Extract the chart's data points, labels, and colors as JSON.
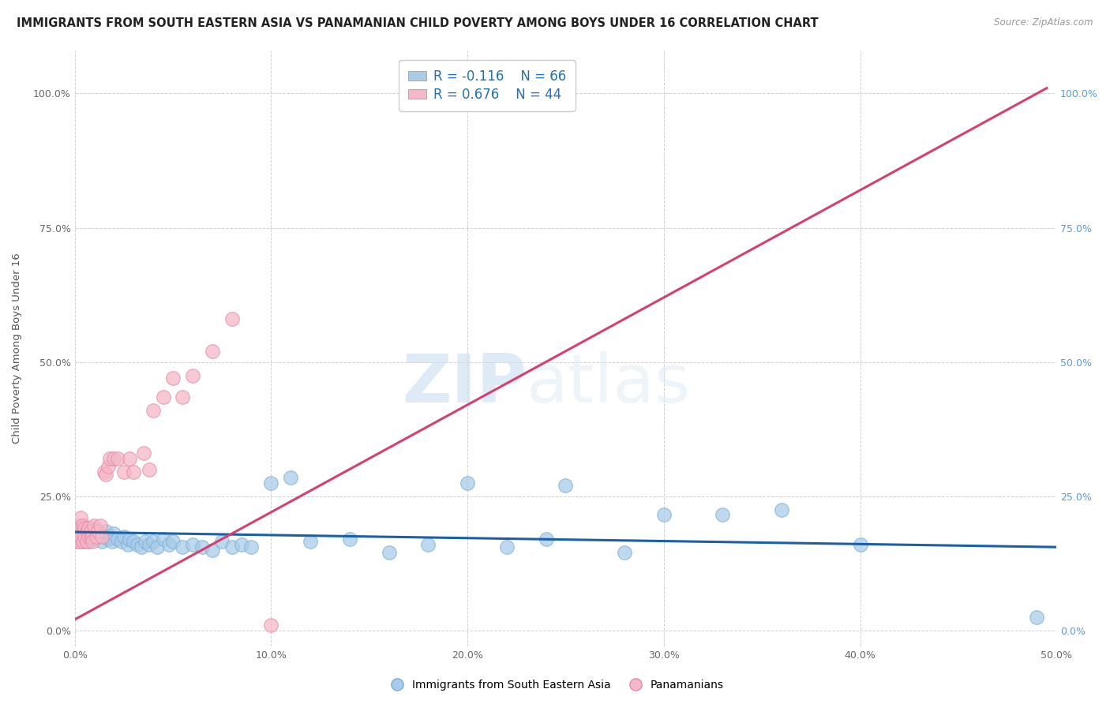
{
  "title": "IMMIGRANTS FROM SOUTH EASTERN ASIA VS PANAMANIAN CHILD POVERTY AMONG BOYS UNDER 16 CORRELATION CHART",
  "source": "Source: ZipAtlas.com",
  "ylabel": "Child Poverty Among Boys Under 16",
  "xlim": [
    0.0,
    0.5
  ],
  "ylim": [
    -0.03,
    1.08
  ],
  "xticks": [
    0.0,
    0.1,
    0.2,
    0.3,
    0.4,
    0.5
  ],
  "xticklabels": [
    "0.0%",
    "10.0%",
    "20.0%",
    "30.0%",
    "40.0%",
    "50.0%"
  ],
  "yticks_left": [
    0.0,
    0.25,
    0.5,
    0.75,
    1.0
  ],
  "yticklabels_left": [
    "0.0%",
    "25.0%",
    "50.0%",
    "75.0%",
    "100.0%"
  ],
  "yticks_right": [
    0.0,
    0.25,
    0.5,
    0.75,
    1.0
  ],
  "yticklabels_right": [
    "0.0%",
    "25.0%",
    "50.0%",
    "75.0%",
    "100.0%"
  ],
  "watermark_zip": "ZIP",
  "watermark_atlas": "atlas",
  "legend_r1": "R = -0.116",
  "legend_n1": "N = 66",
  "legend_r2": "R = 0.676",
  "legend_n2": "N = 44",
  "blue_fill": "#a8cce8",
  "blue_edge": "#7aafd4",
  "pink_fill": "#f4b8c8",
  "pink_edge": "#e888a8",
  "blue_line_color": "#1a5fa8",
  "pink_line_color": "#d44070",
  "grid_color": "#cccccc",
  "background_color": "#ffffff",
  "title_fontsize": 10.5,
  "axis_label_fontsize": 9.5,
  "tick_fontsize": 9,
  "legend_fontsize": 12,
  "blue_scatter_x": [
    0.001,
    0.002,
    0.002,
    0.003,
    0.003,
    0.004,
    0.004,
    0.005,
    0.005,
    0.006,
    0.006,
    0.007,
    0.007,
    0.008,
    0.009,
    0.01,
    0.01,
    0.011,
    0.012,
    0.013,
    0.014,
    0.015,
    0.016,
    0.017,
    0.018,
    0.019,
    0.02,
    0.022,
    0.024,
    0.025,
    0.027,
    0.028,
    0.03,
    0.032,
    0.034,
    0.036,
    0.038,
    0.04,
    0.042,
    0.045,
    0.048,
    0.05,
    0.055,
    0.06,
    0.065,
    0.07,
    0.075,
    0.08,
    0.085,
    0.09,
    0.1,
    0.11,
    0.12,
    0.14,
    0.16,
    0.18,
    0.2,
    0.22,
    0.24,
    0.25,
    0.28,
    0.3,
    0.33,
    0.36,
    0.4,
    0.49
  ],
  "blue_scatter_y": [
    0.175,
    0.18,
    0.19,
    0.17,
    0.185,
    0.165,
    0.18,
    0.19,
    0.17,
    0.175,
    0.18,
    0.165,
    0.175,
    0.19,
    0.185,
    0.18,
    0.17,
    0.185,
    0.175,
    0.18,
    0.165,
    0.175,
    0.185,
    0.17,
    0.175,
    0.165,
    0.18,
    0.17,
    0.165,
    0.175,
    0.16,
    0.17,
    0.165,
    0.16,
    0.155,
    0.165,
    0.16,
    0.165,
    0.155,
    0.17,
    0.16,
    0.165,
    0.155,
    0.16,
    0.155,
    0.15,
    0.165,
    0.155,
    0.16,
    0.155,
    0.275,
    0.285,
    0.165,
    0.17,
    0.145,
    0.16,
    0.275,
    0.155,
    0.17,
    0.27,
    0.145,
    0.215,
    0.215,
    0.225,
    0.16,
    0.025
  ],
  "pink_scatter_x": [
    0.0005,
    0.001,
    0.001,
    0.002,
    0.002,
    0.002,
    0.003,
    0.003,
    0.004,
    0.004,
    0.005,
    0.005,
    0.006,
    0.006,
    0.007,
    0.007,
    0.008,
    0.008,
    0.009,
    0.009,
    0.01,
    0.011,
    0.012,
    0.013,
    0.014,
    0.015,
    0.016,
    0.017,
    0.018,
    0.02,
    0.022,
    0.025,
    0.028,
    0.03,
    0.035,
    0.038,
    0.04,
    0.045,
    0.05,
    0.055,
    0.06,
    0.07,
    0.08,
    0.1
  ],
  "pink_scatter_y": [
    0.165,
    0.18,
    0.17,
    0.175,
    0.165,
    0.195,
    0.21,
    0.175,
    0.165,
    0.195,
    0.19,
    0.175,
    0.185,
    0.165,
    0.175,
    0.19,
    0.175,
    0.185,
    0.175,
    0.165,
    0.195,
    0.175,
    0.185,
    0.195,
    0.175,
    0.295,
    0.29,
    0.305,
    0.32,
    0.32,
    0.32,
    0.295,
    0.32,
    0.295,
    0.33,
    0.3,
    0.41,
    0.435,
    0.47,
    0.435,
    0.475,
    0.52,
    0.58,
    0.01
  ],
  "blue_trend_x": [
    0.0,
    0.5
  ],
  "blue_trend_y": [
    0.183,
    0.155
  ],
  "pink_trend_x": [
    0.0,
    0.495
  ],
  "pink_trend_y": [
    0.02,
    1.01
  ]
}
